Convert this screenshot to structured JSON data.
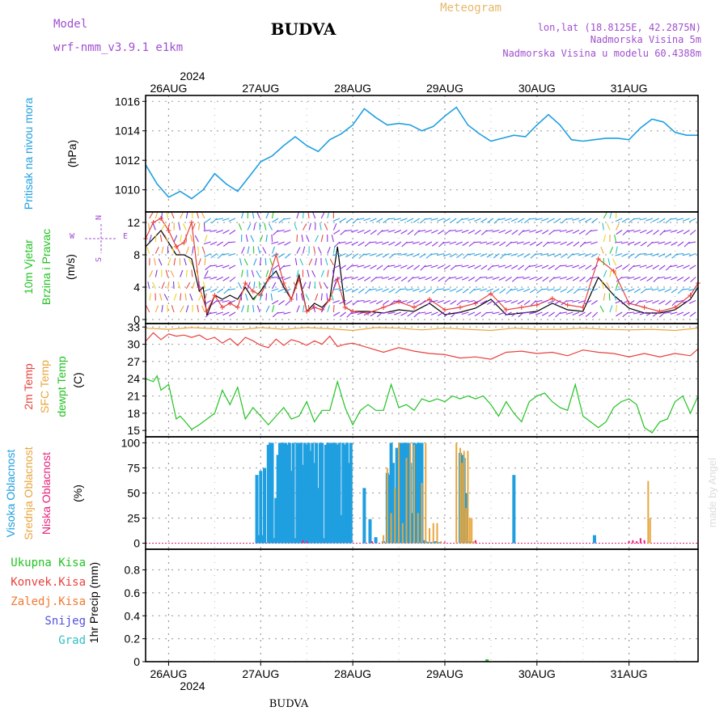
{
  "header": {
    "model_label": "Model",
    "model_name": "wrf-nmm_v3.9.1  e1km",
    "station": "BUDVA",
    "meteogram_label": "Meteogram",
    "lonlat": "lon,lat (18.8125E, 42.2875N)",
    "altitude": "Nadmorska Visina 5m",
    "model_altitude": "Nadmorska Visina u modelu 60.4388m",
    "top_year": "2024",
    "bottom_year": "2024",
    "footer_station": "BUDVA",
    "credit": "made by Angel"
  },
  "colors": {
    "pressure": "#1f9fe0",
    "t2m": "#e8413c",
    "sfc": "#e8a63c",
    "dewpoint": "#22c322",
    "cloud_high": "#1f9fe0",
    "cloud_mid": "#e8a63c",
    "cloud_low": "#e8207a",
    "wind_speed": "#000000",
    "wind_gust": "#e8413c"
  },
  "chart_data": {
    "x_days": [
      "26AUG",
      "27AUG",
      "28AUG",
      "29AUG",
      "30AUG",
      "31AUG"
    ],
    "x_start_hour": -6,
    "x_end_hour": 138,
    "panels": [
      {
        "id": "pressure",
        "type": "line",
        "ylabels": [
          "Pritisak na nivou mora",
          "(hPa)"
        ],
        "ylim": [
          1008.5,
          1016.4
        ],
        "yticks": [
          "1010",
          "1012",
          "1014",
          "1016"
        ],
        "series": [
          {
            "key": "pressure",
            "t": [
              -6,
              -3,
              0,
              3,
              6,
              9,
              12,
              15,
              18,
              21,
              24,
              27,
              30,
              33,
              36,
              39,
              42,
              45,
              48,
              51,
              54,
              57,
              60,
              63,
              66,
              69,
              72,
              75,
              78,
              81,
              84,
              87,
              90,
              93,
              96,
              99,
              102,
              105,
              108,
              111,
              114,
              117,
              120,
              123,
              126,
              129,
              132,
              135,
              138
            ],
            "v": [
              1011.7,
              1010.4,
              1009.5,
              1009.9,
              1009.4,
              1010.0,
              1011.1,
              1010.4,
              1009.9,
              1010.9,
              1011.9,
              1012.3,
              1013.0,
              1013.6,
              1013.0,
              1012.6,
              1013.4,
              1013.8,
              1014.4,
              1015.5,
              1014.9,
              1014.4,
              1014.5,
              1014.4,
              1014.0,
              1014.3,
              1015.0,
              1015.6,
              1014.4,
              1013.8,
              1013.3,
              1013.5,
              1013.7,
              1013.6,
              1014.4,
              1015.1,
              1014.4,
              1013.4,
              1013.3,
              1013.4,
              1013.5,
              1013.5,
              1013.4,
              1014.2,
              1014.8,
              1014.6,
              1013.9,
              1013.7,
              1013.7
            ]
          }
        ]
      },
      {
        "id": "wind",
        "type": "line",
        "ylabels": [
          "10m Vjetar",
          "Brzina i Pravac",
          "(m/s)"
        ],
        "ylim": [
          -0.5,
          13.3
        ],
        "yticks": [
          "0",
          "4",
          "8",
          "12"
        ],
        "compass": [
          "N",
          "W",
          "E",
          "S"
        ],
        "series": [
          {
            "key": "wind_speed",
            "t": [
              -6,
              -4,
              -2,
              0,
              2,
              4,
              6,
              8,
              9,
              10,
              12,
              14,
              16,
              18,
              20,
              22,
              24,
              26,
              28,
              30,
              32,
              34,
              36,
              38,
              40,
              42,
              44,
              46,
              48,
              52,
              56,
              60,
              64,
              68,
              72,
              76,
              80,
              84,
              88,
              92,
              96,
              100,
              104,
              108,
              112,
              116,
              120,
              124,
              128,
              132,
              136,
              138
            ],
            "v": [
              9,
              10,
              11,
              9.5,
              8,
              8,
              7.5,
              3.5,
              4,
              0.5,
              3,
              2.5,
              3,
              2.5,
              4,
              2.5,
              3.5,
              5,
              6,
              4,
              2.5,
              5.5,
              1,
              2,
              1.5,
              2.5,
              9,
              1.5,
              1,
              1,
              0.8,
              1.2,
              1,
              2,
              0.6,
              0.9,
              1.4,
              2.5,
              0.6,
              0.8,
              1,
              2,
              1.2,
              1,
              5.2,
              3,
              1.4,
              0.8,
              0.8,
              1.2,
              2.5,
              4
            ]
          },
          {
            "key": "wind_gust",
            "t": [
              -6,
              -4,
              -2,
              0,
              2,
              4,
              6,
              8,
              10,
              12,
              14,
              16,
              18,
              20,
              22,
              24,
              26,
              28,
              30,
              32,
              34,
              36,
              38,
              40,
              42,
              44,
              46,
              48,
              52,
              56,
              60,
              64,
              68,
              72,
              76,
              80,
              84,
              88,
              92,
              96,
              100,
              104,
              108,
              112,
              116,
              120,
              124,
              128,
              132,
              136,
              138
            ],
            "v": [
              10,
              12,
              12.5,
              11,
              9,
              9.5,
              12,
              4,
              1,
              3,
              1.5,
              2,
              1.5,
              4.5,
              3.5,
              3,
              5,
              8,
              4.5,
              2.5,
              5,
              1,
              1.5,
              1.2,
              2.5,
              5,
              1.5,
              1,
              0.8,
              1.5,
              2.2,
              1.5,
              2.5,
              1.2,
              1.5,
              2,
              3.2,
              1.2,
              1.5,
              1.8,
              2.6,
              1.8,
              1.5,
              7.5,
              6,
              2,
              1.5,
              1,
              1.5,
              3,
              4.5
            ]
          }
        ]
      },
      {
        "id": "temperature",
        "type": "line",
        "ylabels": [
          "2m Temp",
          "SFC Temp",
          "dewpt Temp",
          "(C)"
        ],
        "ylim": [
          13.9,
          33.6
        ],
        "yticks": [
          "15",
          "18",
          "21",
          "24",
          "27",
          "30",
          "33"
        ],
        "series": [
          {
            "key": "sfc",
            "t": [
              -6,
              0,
              6,
              12,
              18,
              24,
              30,
              36,
              42,
              48,
              54,
              60,
              66,
              72,
              78,
              84,
              90,
              96,
              102,
              108,
              114,
              120,
              126,
              132,
              138
            ],
            "v": [
              32.8,
              32.6,
              32.9,
              32.7,
              32.5,
              32.9,
              32.6,
              32.9,
              32.7,
              32.4,
              32.9,
              32.8,
              32.5,
              32.8,
              32.6,
              32.4,
              32.8,
              32.6,
              32.6,
              32.8,
              32.6,
              32.5,
              32.6,
              32.4,
              32.8
            ]
          },
          {
            "key": "t2m",
            "t": [
              -6,
              -4,
              -2,
              0,
              2,
              4,
              6,
              8,
              10,
              12,
              14,
              16,
              18,
              20,
              22,
              24,
              26,
              28,
              30,
              32,
              34,
              36,
              38,
              40,
              42,
              44,
              46,
              48,
              52,
              56,
              60,
              64,
              68,
              72,
              76,
              80,
              84,
              88,
              92,
              96,
              100,
              104,
              108,
              112,
              116,
              120,
              124,
              128,
              132,
              136,
              138
            ],
            "v": [
              30.5,
              32,
              30.8,
              31.8,
              31.4,
              31.6,
              31.2,
              31.6,
              30.8,
              31.2,
              30.2,
              31,
              29.8,
              31.2,
              30.6,
              29.8,
              29.4,
              30.9,
              29.8,
              30.8,
              30.4,
              29.8,
              30.6,
              30,
              31.4,
              29.6,
              30,
              30.2,
              29.4,
              28.6,
              29.4,
              28.8,
              28.4,
              28.2,
              27.6,
              27.8,
              27.4,
              28.6,
              28.8,
              28.4,
              28.6,
              28,
              29,
              28.6,
              28.4,
              27.8,
              28.4,
              27.8,
              28.4,
              28,
              29.2
            ]
          },
          {
            "key": "dewpoint",
            "t": [
              -6,
              -4,
              -3,
              -2,
              0,
              2,
              3,
              4,
              6,
              8,
              10,
              12,
              14,
              16,
              18,
              20,
              22,
              24,
              26,
              28,
              30,
              32,
              34,
              36,
              38,
              40,
              42,
              44,
              46,
              48,
              50,
              52,
              54,
              56,
              58,
              60,
              62,
              64,
              66,
              68,
              70,
              72,
              74,
              76,
              78,
              80,
              82,
              84,
              86,
              88,
              90,
              92,
              94,
              96,
              98,
              100,
              102,
              104,
              106,
              108,
              110,
              112,
              114,
              116,
              118,
              120,
              122,
              124,
              126,
              128,
              130,
              132,
              134,
              136,
              138
            ],
            "v": [
              24,
              23.5,
              24.5,
              22,
              23,
              17,
              17.5,
              16.8,
              15.2,
              16,
              17,
              18,
              22,
              19.5,
              22.5,
              17,
              19,
              17.5,
              16,
              17.5,
              19,
              17,
              17.5,
              20,
              16.5,
              18.5,
              18.5,
              23.5,
              19,
              16,
              18.5,
              19.5,
              18.5,
              18.5,
              23,
              19,
              19.5,
              18.5,
              20.5,
              20,
              20.5,
              20,
              21,
              20.5,
              21,
              20.5,
              21,
              19.5,
              17.5,
              20,
              18,
              16.5,
              20,
              21,
              21.5,
              20,
              19,
              18.5,
              23,
              17.5,
              16.5,
              15.5,
              16.5,
              19,
              20,
              20.5,
              19.5,
              15.5,
              14.6,
              16.5,
              17,
              20,
              21,
              18,
              21
            ]
          }
        ]
      },
      {
        "id": "clouds",
        "type": "bar",
        "ylabels": [
          "Visoka Oblacnost",
          "Srednja Oblacnost",
          "Niska Oblacnost",
          "(%)"
        ],
        "ylim": [
          -6,
          106
        ],
        "yticks": [
          "0",
          "25",
          "50",
          "75",
          "100"
        ],
        "bars_high": {
          "t": [
            23,
            23.5,
            24,
            24.5,
            25,
            25.5,
            26,
            26.5,
            27,
            27.5,
            28,
            28.5,
            29,
            29.5,
            30,
            30.5,
            31,
            31.5,
            32,
            32.5,
            33,
            33.5,
            34,
            34.5,
            35,
            35.5,
            36,
            36.5,
            37,
            37.5,
            38,
            38.5,
            39,
            39.5,
            40,
            40.5,
            41,
            41.5,
            42,
            42.5,
            43,
            43.5,
            44,
            44.5,
            45,
            45.5,
            46,
            46.5,
            47,
            47.5,
            51,
            52.5,
            54,
            56,
            57,
            57.5,
            58,
            58.5,
            59,
            59.5,
            60,
            60.5,
            61,
            61.5,
            62,
            62.5,
            63,
            63.5,
            64,
            64.5,
            65,
            65.5,
            66,
            66.5,
            67,
            67.5,
            68,
            68.5,
            69,
            69.5,
            70,
            70.5,
            76,
            76.5,
            77,
            77.5,
            78.5,
            90,
            111
          ],
          "v": [
            68,
            8,
            72,
            8,
            75,
            0,
            98,
            100,
            100,
            5,
            45,
            88,
            100,
            100,
            100,
            100,
            98,
            100,
            72,
            100,
            5,
            100,
            100,
            100,
            78,
            100,
            98,
            100,
            92,
            100,
            80,
            100,
            55,
            100,
            100,
            5,
            98,
            100,
            100,
            100,
            100,
            100,
            98,
            100,
            28,
            100,
            98,
            100,
            80,
            100,
            55,
            24,
            6,
            2,
            70,
            68,
            100,
            80,
            45,
            95,
            20,
            100,
            100,
            100,
            100,
            100,
            80,
            30,
            100,
            99,
            100,
            100,
            100,
            3,
            2,
            1,
            1,
            1,
            1,
            2,
            1,
            1,
            90,
            88,
            85,
            50,
            2,
            68,
            8
          ]
        },
        "bars_mid": {
          "t": [
            56,
            57,
            58,
            59,
            60,
            61,
            62,
            63,
            64,
            65,
            66,
            67,
            68,
            69,
            70,
            71,
            75,
            76,
            76.5,
            77,
            77.5,
            78,
            78.5,
            79,
            79.5,
            125,
            125.5
          ],
          "v": [
            8,
            75,
            30,
            55,
            100,
            20,
            85,
            100,
            98,
            30,
            60,
            100,
            15,
            20,
            20,
            2,
            100,
            95,
            80,
            92,
            35,
            92,
            25,
            25,
            2,
            62,
            25
          ]
        },
        "bars_low": {
          "t": [
            35,
            36,
            53,
            72,
            80,
            120,
            121,
            122,
            123,
            124
          ],
          "v": [
            3,
            2,
            2,
            1,
            3,
            2,
            3,
            2,
            5,
            3
          ]
        }
      },
      {
        "id": "precip",
        "type": "bar",
        "ylabels": [
          "1hr Precip (mm)"
        ],
        "ylim": [
          0,
          0.98
        ],
        "yticks": [
          "0",
          "0.2",
          "0.4",
          "0.6",
          "0.8"
        ],
        "legend": [
          {
            "label": "Ukupna  Kisa",
            "color": "#22c322"
          },
          {
            "label": "Konvek.Kisa",
            "color": "#e8413c"
          },
          {
            "label": "Zaledj.Kisa",
            "color": "#f07830"
          },
          {
            "label": "Snijeg",
            "color": "#5050e0"
          },
          {
            "label": "Grad",
            "color": "#30c0c0"
          }
        ],
        "bars": {
          "t": [
            83
          ],
          "v": [
            0.02
          ]
        }
      }
    ]
  }
}
